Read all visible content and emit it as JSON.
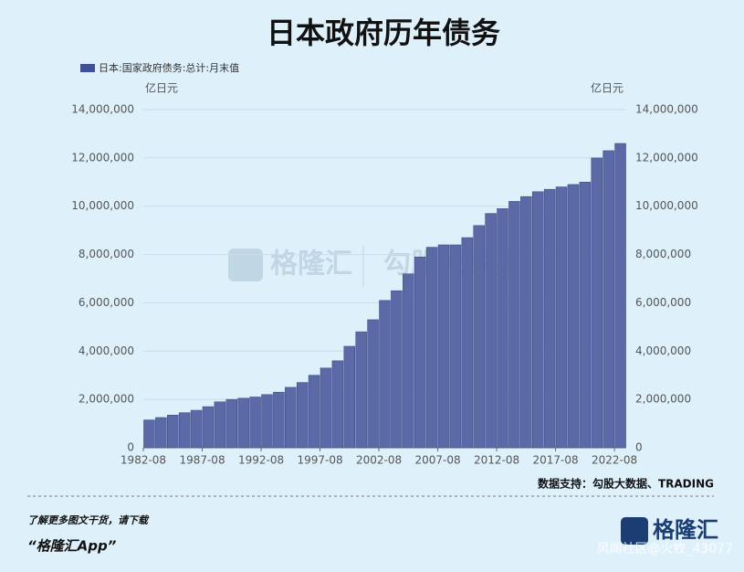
{
  "chart_data": {
    "type": "bar",
    "title": "日本政府历年债务",
    "y_label": "亿日元",
    "y2_label": "亿日元",
    "categories": [
      "1982-08",
      null,
      null,
      null,
      null,
      "1987-08",
      null,
      null,
      null,
      null,
      "1992-08",
      null,
      null,
      null,
      null,
      "1997-08",
      null,
      null,
      null,
      null,
      "2002-08",
      null,
      null,
      null,
      null,
      "2007-08",
      null,
      null,
      null,
      null,
      "2012-08",
      null,
      null,
      null,
      null,
      "2017-08",
      null,
      null,
      null,
      null,
      "2022-08"
    ],
    "series": [
      {
        "name": "日本:国家政府债务:总计:月末值",
        "color": "#5b6aa6",
        "values": [
          1150000,
          1250000,
          1350000,
          1450000,
          1550000,
          1700000,
          1900000,
          2000000,
          2050000,
          2100000,
          2200000,
          2300000,
          2500000,
          2700000,
          3000000,
          3300000,
          3600000,
          4200000,
          4800000,
          5300000,
          6100000,
          6500000,
          7200000,
          7900000,
          8300000,
          8400000,
          8400000,
          8700000,
          9200000,
          9700000,
          9900000,
          10200000,
          10400000,
          10600000,
          10700000,
          10800000,
          10900000,
          11000000,
          12000000,
          12300000,
          12600000
        ]
      }
    ],
    "ylim": [
      0,
      14000000
    ],
    "yticks": [
      0,
      {
        "value": 2000000,
        "label": "2,000,000"
      },
      {
        "value": 4000000,
        "label": "4,000,000"
      },
      {
        "value": 6000000,
        "label": "6,000,000"
      },
      {
        "value": 8000000,
        "label": "8,000,000"
      },
      {
        "value": 10000000,
        "label": "10,000,000"
      },
      {
        "value": 12000000,
        "label": "12,000,000"
      },
      {
        "value": 14000000,
        "label": "14,000,000"
      }
    ],
    "y2lim": [
      0,
      14000000
    ],
    "y2ticks": [
      0,
      {
        "value": 2000000,
        "label": "2,000,000"
      },
      {
        "value": 4000000,
        "label": "4,000,000"
      },
      {
        "value": 6000000,
        "label": "6,000,000"
      },
      {
        "value": 8000000,
        "label": "8,000,000"
      },
      {
        "value": 10000000,
        "label": "10,000,000"
      },
      {
        "value": 12000000,
        "label": "12,000,000"
      },
      {
        "value": 14000000,
        "label": "14,000,000"
      }
    ],
    "grid": true,
    "source": "数据支持：勾股大数据、TRADING"
  },
  "footer": {
    "prompt": "了解更多图文干货，请下载",
    "app": "“格隆汇App”",
    "logo": "格隆汇",
    "watermark": "风闻社区@火牧_43077"
  },
  "center_watermark": {
    "left": "格隆汇",
    "right": "勾股大数据"
  }
}
